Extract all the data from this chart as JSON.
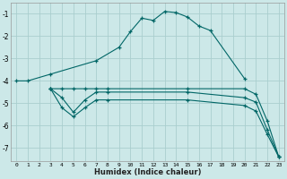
{
  "xlabel": "Humidex (Indice chaleur)",
  "bg_color": "#cce8e8",
  "grid_color": "#aacece",
  "line_color": "#006666",
  "xlim": [
    -0.5,
    23.5
  ],
  "ylim": [
    -7.6,
    -0.5
  ],
  "yticks": [
    -7,
    -6,
    -5,
    -4,
    -3,
    -2,
    -1
  ],
  "xticks": [
    0,
    1,
    2,
    3,
    4,
    5,
    6,
    7,
    8,
    9,
    10,
    11,
    12,
    13,
    14,
    15,
    16,
    17,
    18,
    19,
    20,
    21,
    22,
    23
  ],
  "series": [
    {
      "x": [
        0,
        1,
        3,
        7,
        9,
        10,
        11,
        12,
        13,
        14,
        15,
        16,
        17,
        20
      ],
      "y": [
        -4.0,
        -4.0,
        -3.7,
        -3.1,
        -2.5,
        -1.8,
        -1.2,
        -1.3,
        -0.9,
        -0.95,
        -1.15,
        -1.55,
        -1.75,
        -3.9
      ]
    },
    {
      "x": [
        3,
        4,
        5,
        6,
        7,
        8,
        15,
        20,
        21,
        22,
        23
      ],
      "y": [
        -4.35,
        -4.35,
        -4.35,
        -4.35,
        -4.35,
        -4.35,
        -4.35,
        -4.35,
        -4.6,
        -5.8,
        -7.4
      ]
    },
    {
      "x": [
        3,
        4,
        5,
        6,
        7,
        8,
        15,
        20,
        21,
        22,
        23
      ],
      "y": [
        -4.35,
        -4.75,
        -5.4,
        -4.85,
        -4.5,
        -4.5,
        -4.5,
        -4.75,
        -4.95,
        -6.2,
        -7.4
      ]
    },
    {
      "x": [
        3,
        4,
        5,
        6,
        7,
        8,
        15,
        20,
        21,
        22,
        23
      ],
      "y": [
        -4.35,
        -5.2,
        -5.6,
        -5.2,
        -4.85,
        -4.85,
        -4.85,
        -5.1,
        -5.35,
        -6.4,
        -7.4
      ]
    }
  ]
}
